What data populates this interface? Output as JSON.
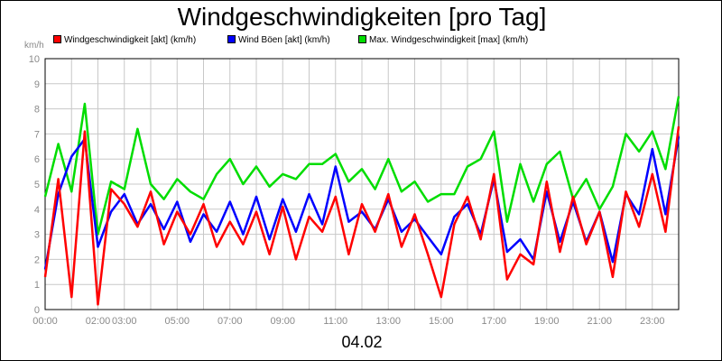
{
  "chart_data": {
    "type": "line",
    "title": "Windgeschwindigkeiten [pro Tag]",
    "ylabel": "km/h",
    "xlabel": "04.02",
    "ylim": [
      0,
      10
    ],
    "xlim": [
      0,
      24
    ],
    "grid": true,
    "legend_position": "top",
    "y_ticks": [
      "0",
      "1",
      "2",
      "3",
      "4",
      "5",
      "6",
      "7",
      "8",
      "9",
      "10"
    ],
    "x_ticks": [
      {
        "h": 0,
        "label": "00:00"
      },
      {
        "h": 2,
        "label": "02:00"
      },
      {
        "h": 3,
        "label": "03:00"
      },
      {
        "h": 5,
        "label": "05:00"
      },
      {
        "h": 7,
        "label": "07:00"
      },
      {
        "h": 9,
        "label": "09:00"
      },
      {
        "h": 11,
        "label": "11:00"
      },
      {
        "h": 13,
        "label": "13:00"
      },
      {
        "h": 15,
        "label": "15:00"
      },
      {
        "h": 17,
        "label": "17:00"
      },
      {
        "h": 19,
        "label": "19:00"
      },
      {
        "h": 21,
        "label": "21:00"
      },
      {
        "h": 23,
        "label": "23:00"
      }
    ],
    "x": [
      0,
      0.5,
      1,
      1.5,
      2,
      2.5,
      3,
      3.5,
      4,
      4.5,
      5,
      5.5,
      6,
      6.5,
      7,
      7.5,
      8,
      8.5,
      9,
      9.5,
      10,
      10.5,
      11,
      11.5,
      12,
      12.5,
      13,
      13.5,
      14,
      14.5,
      15,
      15.5,
      16,
      16.5,
      17,
      17.5,
      18,
      18.5,
      19,
      19.5,
      20,
      20.5,
      21,
      21.5,
      22,
      22.5,
      23,
      23.5,
      24
    ],
    "series": [
      {
        "name": "Windgeschwindigkeit [akt] (km/h)",
        "color": "#ff0000",
        "values": [
          1.3,
          5.2,
          0.5,
          7.1,
          0.2,
          4.8,
          4.2,
          3.3,
          4.7,
          2.6,
          3.9,
          3.0,
          4.2,
          2.5,
          3.5,
          2.6,
          3.9,
          2.2,
          4.1,
          2.0,
          3.7,
          3.1,
          4.5,
          2.2,
          4.2,
          3.1,
          4.6,
          2.5,
          3.8,
          2.2,
          0.5,
          3.4,
          4.5,
          2.8,
          5.4,
          1.2,
          2.2,
          1.8,
          5.1,
          2.3,
          4.5,
          2.6,
          3.9,
          1.3,
          4.7,
          3.3,
          5.4,
          3.1,
          7.3
        ]
      },
      {
        "name": "Wind Böen [akt] (km/h)",
        "color": "#0000ff",
        "values": [
          1.6,
          4.6,
          6.1,
          6.8,
          2.5,
          3.9,
          4.6,
          3.4,
          4.2,
          3.2,
          4.3,
          2.7,
          3.8,
          3.1,
          4.3,
          3.0,
          4.5,
          2.8,
          4.4,
          3.1,
          4.6,
          3.4,
          5.7,
          3.5,
          3.9,
          3.2,
          4.4,
          3.1,
          3.6,
          2.9,
          2.2,
          3.7,
          4.2,
          3.0,
          5.2,
          2.3,
          2.8,
          2.0,
          4.7,
          2.7,
          4.3,
          2.7,
          3.9,
          1.9,
          4.6,
          3.8,
          6.4,
          3.8,
          6.9
        ]
      },
      {
        "name": "Max. Windgeschwindigkeit [max] (km/h)",
        "color": "#00dd00",
        "values": [
          4.5,
          6.6,
          4.7,
          8.2,
          3.0,
          5.1,
          4.8,
          7.2,
          5.0,
          4.4,
          5.2,
          4.7,
          4.4,
          5.4,
          6.0,
          5.0,
          5.7,
          4.9,
          5.4,
          5.2,
          5.8,
          5.8,
          6.2,
          5.1,
          5.6,
          4.8,
          6.0,
          4.7,
          5.1,
          4.3,
          4.6,
          4.6,
          5.7,
          6.0,
          7.1,
          3.5,
          5.8,
          4.3,
          5.8,
          6.3,
          4.4,
          5.2,
          4.0,
          4.9,
          7.0,
          6.3,
          7.1,
          5.6,
          8.5
        ]
      }
    ]
  }
}
